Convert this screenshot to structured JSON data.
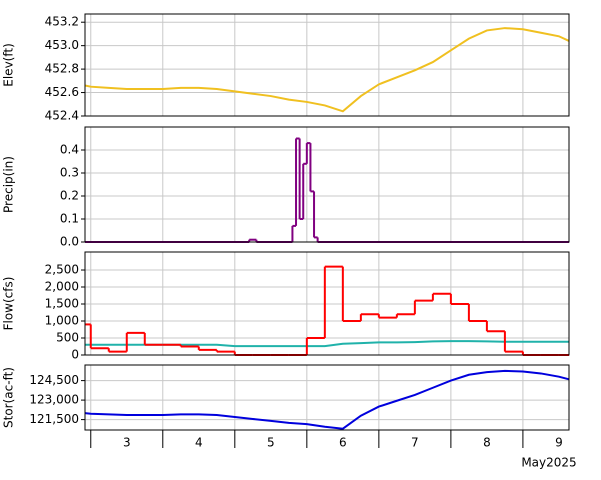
{
  "chart_data": [
    {
      "type": "line",
      "ylabel": "Elev(ft)",
      "xlim": [
        2.92,
        9.64
      ],
      "xticks": [
        3,
        4,
        5,
        6,
        7,
        8,
        9
      ],
      "ylim": [
        452.4,
        453.27
      ],
      "yticks": [
        452.4,
        452.6,
        452.8,
        {
          "value": 453,
          "label": "453.0"
        },
        453.2
      ],
      "grid": true,
      "x": [
        2.92,
        3,
        3.25,
        3.5,
        3.75,
        4,
        4.25,
        4.5,
        4.75,
        5,
        5.25,
        5.5,
        5.75,
        6,
        6.25,
        6.5,
        6.75,
        7,
        7.25,
        7.5,
        7.75,
        8,
        8.25,
        8.5,
        8.75,
        9,
        9.25,
        9.5,
        9.64
      ],
      "series": [
        {
          "color": "#f0c020",
          "step": false,
          "values": [
            452.66,
            452.65,
            452.64,
            452.63,
            452.63,
            452.63,
            452.64,
            452.64,
            452.63,
            452.61,
            452.59,
            452.57,
            452.54,
            452.52,
            452.49,
            452.44,
            452.57,
            452.67,
            452.73,
            452.79,
            452.86,
            452.96,
            453.06,
            453.13,
            453.15,
            453.14,
            453.11,
            453.08,
            453.04
          ]
        }
      ]
    },
    {
      "type": "line",
      "ylabel": "Precip(in)",
      "xlim": [
        2.92,
        9.64
      ],
      "xticks": [
        3,
        4,
        5,
        6,
        7,
        8,
        9
      ],
      "ylim": [
        0,
        0.5
      ],
      "yticks": [
        {
          "value": 0,
          "label": "0.0"
        },
        0.1,
        0.2,
        0.3,
        0.4
      ],
      "grid": true,
      "x": [
        2.92,
        5.2,
        5.3,
        5.8,
        5.85,
        5.9,
        5.95,
        6.0,
        6.05,
        6.1,
        6.15,
        9.64
      ],
      "series": [
        {
          "color": "#800080",
          "step": true,
          "values": [
            0,
            0.01,
            0,
            0.07,
            0.45,
            0.1,
            0.34,
            0.43,
            0.22,
            0.02,
            0,
            0
          ]
        }
      ]
    },
    {
      "type": "line",
      "ylabel": "Flow(cfs)",
      "xlim": [
        2.92,
        9.64
      ],
      "xticks": [
        3,
        4,
        5,
        6,
        7,
        8,
        9
      ],
      "ylim": [
        0,
        3030
      ],
      "yticks": [
        0,
        500,
        {
          "value": 1000,
          "label": "1,000"
        },
        {
          "value": 1500,
          "label": "1,500"
        },
        {
          "value": 2000,
          "label": "2,000"
        },
        {
          "value": 2500,
          "label": "2,500"
        }
      ],
      "grid": true,
      "x": [
        2.92,
        3,
        3.25,
        3.5,
        3.75,
        4,
        4.25,
        4.5,
        4.75,
        5,
        5.25,
        5.5,
        5.75,
        6,
        6.25,
        6.5,
        6.75,
        7,
        7.25,
        7.5,
        7.75,
        8,
        8.25,
        8.5,
        8.75,
        9,
        9.25,
        9.5,
        9.64
      ],
      "series": [
        {
          "color": "#20b2aa",
          "step": false,
          "values": [
            300,
            300,
            300,
            300,
            300,
            300,
            300,
            300,
            300,
            260,
            260,
            260,
            260,
            260,
            260,
            330,
            350,
            370,
            370,
            380,
            400,
            410,
            410,
            400,
            390,
            390,
            390,
            390,
            390
          ]
        },
        {
          "color": "#ff0000",
          "step": true,
          "values": [
            900,
            200,
            100,
            650,
            300,
            300,
            250,
            150,
            100,
            0,
            0,
            0,
            0,
            500,
            2600,
            1000,
            1200,
            1100,
            1200,
            1600,
            1800,
            1500,
            1000,
            700,
            100,
            0,
            0,
            0,
            0
          ]
        }
      ]
    },
    {
      "type": "line",
      "ylabel": "Stor(ac-ft)",
      "xlabel": "May2025",
      "xlim": [
        2.92,
        9.64
      ],
      "xticks": [
        3,
        4,
        5,
        6,
        7,
        8,
        9
      ],
      "ylim": [
        120700,
        125700
      ],
      "yticks": [
        {
          "value": 121500,
          "label": "121,500"
        },
        {
          "value": 123000,
          "label": "123,000"
        },
        {
          "value": 124500,
          "label": "124,500"
        }
      ],
      "grid": true,
      "x": [
        2.92,
        3,
        3.25,
        3.5,
        3.75,
        4,
        4.25,
        4.5,
        4.75,
        5,
        5.25,
        5.5,
        5.75,
        6,
        6.25,
        6.5,
        6.75,
        7,
        7.25,
        7.5,
        7.75,
        8,
        8.25,
        8.5,
        8.75,
        9,
        9.25,
        9.5,
        9.64
      ],
      "series": [
        {
          "color": "#0000dd",
          "step": false,
          "values": [
            122000,
            121950,
            121900,
            121850,
            121850,
            121850,
            121900,
            121900,
            121850,
            121700,
            121550,
            121400,
            121250,
            121150,
            120950,
            120800,
            121800,
            122500,
            122950,
            123400,
            123950,
            124500,
            124950,
            125150,
            125250,
            125200,
            125050,
            124800,
            124600
          ]
        }
      ]
    }
  ]
}
